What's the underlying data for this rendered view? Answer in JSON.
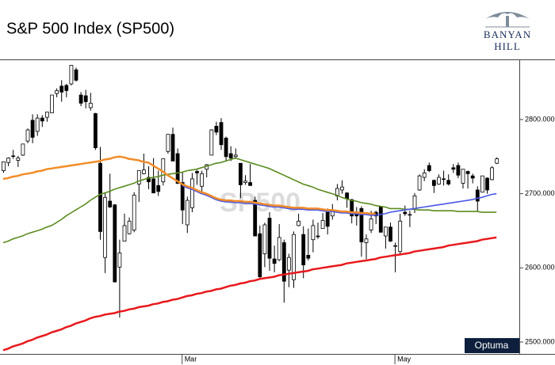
{
  "chart_data": {
    "type": "candlestick",
    "title": "S&P 500 Index  (SP500)",
    "watermark": "SP500",
    "logo": {
      "line1": "BANYAN",
      "line2": "HILL"
    },
    "badge": "Optuma",
    "categories": [
      null,
      null,
      null,
      null,
      null,
      null,
      null,
      null,
      null,
      null,
      null,
      null,
      null,
      null,
      null,
      null,
      null,
      null,
      null,
      null,
      null,
      null,
      null,
      null,
      null,
      null,
      null,
      null,
      null,
      null,
      null,
      null,
      null,
      null,
      null,
      null,
      null,
      "Mar",
      null,
      null,
      null,
      null,
      null,
      null,
      null,
      null,
      null,
      null,
      null,
      null,
      null,
      null,
      null,
      null,
      null,
      null,
      null,
      null,
      null,
      null,
      null,
      null,
      null,
      null,
      null,
      null,
      null,
      null,
      null,
      null,
      null,
      null,
      null,
      null,
      null,
      null,
      null,
      null,
      null,
      null,
      null,
      "May",
      null,
      null,
      null,
      null,
      null,
      null,
      null,
      null,
      null,
      null,
      null,
      null,
      null,
      null,
      null,
      null,
      null,
      null,
      null,
      null,
      null,
      null,
      null
    ],
    "ylim": [
      2484,
      2880
    ],
    "yticks": [
      {
        "value": 2500,
        "label": "2500.000"
      },
      {
        "value": 2600,
        "label": "2600.000"
      },
      {
        "value": 2700,
        "label": "2700.000"
      },
      {
        "value": 2800,
        "label": "2800.000"
      }
    ],
    "candles": {
      "up_color": "#ffffff",
      "down_color": "#000000",
      "open": [
        2731,
        2742,
        2751,
        2745,
        2752,
        2771,
        2799,
        2784,
        2802,
        2803,
        2809,
        2835,
        2845,
        2846,
        2848,
        2867,
        2833,
        2832,
        2816,
        2808,
        2741,
        2614,
        2690,
        2685,
        2601,
        2636,
        2646,
        2651,
        2713,
        2727,
        2722,
        2720,
        2711,
        2716,
        2757,
        2780,
        2754,
        2715,
        2658,
        2681,
        2730,
        2710,
        2733,
        2752,
        2791,
        2796,
        2775,
        2754,
        2750,
        2741,
        2715,
        2715,
        2691,
        2646,
        2619,
        2667,
        2612,
        2611,
        2634,
        2597,
        2584,
        2657,
        2645,
        2617,
        2638,
        2643,
        2653,
        2675,
        2670,
        2697,
        2705,
        2701,
        2692,
        2675,
        2680,
        2634,
        2651,
        2675,
        2682,
        2643,
        2655,
        2629,
        2622,
        2675,
        2671,
        2679,
        2705,
        2722,
        2738,
        2718,
        2713,
        2720,
        2718,
        2735,
        2738,
        2714,
        2730,
        2724,
        2705,
        2702,
        2721,
        2719,
        2741
      ],
      "high": [
        2743,
        2749,
        2759,
        2751,
        2767,
        2788,
        2807,
        2807,
        2806,
        2810,
        2833,
        2842,
        2853,
        2848,
        2873,
        2870,
        2837,
        2840,
        2836,
        2809,
        2763,
        2701,
        2727,
        2686,
        2638,
        2673,
        2668,
        2702,
        2731,
        2754,
        2737,
        2748,
        2731,
        2747,
        2780,
        2789,
        2761,
        2730,
        2696,
        2728,
        2732,
        2731,
        2740,
        2787,
        2797,
        2802,
        2777,
        2764,
        2761,
        2741,
        2725,
        2740,
        2696,
        2657,
        2661,
        2675,
        2630,
        2659,
        2638,
        2619,
        2649,
        2673,
        2656,
        2653,
        2665,
        2661,
        2674,
        2680,
        2686,
        2713,
        2718,
        2702,
        2693,
        2682,
        2683,
        2645,
        2677,
        2677,
        2683,
        2655,
        2661,
        2634,
        2673,
        2684,
        2677,
        2701,
        2726,
        2733,
        2742,
        2719,
        2726,
        2731,
        2726,
        2740,
        2742,
        2733,
        2731,
        2727,
        2710,
        2724,
        2722,
        2737,
        2749
      ],
      "low": [
        2728,
        2737,
        2747,
        2736,
        2751,
        2768,
        2768,
        2778,
        2790,
        2797,
        2809,
        2830,
        2824,
        2830,
        2846,
        2851,
        2818,
        2815,
        2812,
        2759,
        2638,
        2593,
        2681,
        2581,
        2533,
        2636,
        2645,
        2648,
        2689,
        2726,
        2706,
        2701,
        2697,
        2711,
        2754,
        2744,
        2713,
        2659,
        2647,
        2675,
        2712,
        2701,
        2722,
        2752,
        2779,
        2759,
        2744,
        2744,
        2747,
        2694,
        2712,
        2711,
        2643,
        2586,
        2601,
        2596,
        2594,
        2609,
        2553,
        2574,
        2573,
        2656,
        2586,
        2610,
        2621,
        2639,
        2653,
        2645,
        2665,
        2691,
        2700,
        2681,
        2660,
        2657,
        2615,
        2612,
        2647,
        2659,
        2648,
        2626,
        2635,
        2594,
        2617,
        2670,
        2655,
        2674,
        2704,
        2717,
        2729,
        2701,
        2712,
        2711,
        2711,
        2728,
        2721,
        2707,
        2707,
        2714,
        2676,
        2702,
        2700,
        2718,
        2740
      ],
      "close": [
        2743,
        2748,
        2751,
        2748,
        2767,
        2786,
        2776,
        2802,
        2798,
        2810,
        2833,
        2839,
        2837,
        2839,
        2873,
        2853,
        2822,
        2824,
        2822,
        2762,
        2649,
        2695,
        2682,
        2581,
        2620,
        2657,
        2663,
        2698,
        2731,
        2732,
        2716,
        2701,
        2703,
        2747,
        2780,
        2744,
        2714,
        2678,
        2691,
        2720,
        2728,
        2727,
        2739,
        2786,
        2783,
        2766,
        2750,
        2748,
        2752,
        2712,
        2717,
        2711,
        2643,
        2588,
        2658,
        2613,
        2606,
        2641,
        2582,
        2614,
        2645,
        2663,
        2604,
        2613,
        2657,
        2642,
        2664,
        2656,
        2678,
        2707,
        2709,
        2693,
        2670,
        2670,
        2635,
        2639,
        2666,
        2670,
        2648,
        2655,
        2636,
        2630,
        2663,
        2673,
        2672,
        2697,
        2724,
        2728,
        2731,
        2711,
        2722,
        2720,
        2713,
        2733,
        2725,
        2733,
        2727,
        2721,
        2690,
        2724,
        2705,
        2735,
        2747
      ]
    },
    "lines": [
      {
        "color": "#e8191c",
        "values": [
          2489,
          2491,
          2494,
          2496,
          2498,
          2501,
          2503,
          2506,
          2508,
          2510,
          2513,
          2515,
          2517,
          2520,
          2522,
          2525,
          2527,
          2529,
          2532,
          2534,
          2535,
          2537,
          2538,
          2539,
          2541,
          2542,
          2544,
          2545,
          2547,
          2548,
          2549,
          2551,
          2552,
          2554,
          2555,
          2557,
          2558,
          2560,
          2562,
          2563,
          2565,
          2566,
          2568,
          2569,
          2571,
          2572,
          2574,
          2576,
          2577,
          2579,
          2580,
          2582,
          2583,
          2585,
          2586,
          2587,
          2588,
          2590,
          2591,
          2592,
          2593,
          2594,
          2595,
          2596,
          2598,
          2599,
          2600,
          2601,
          2602,
          2603,
          2604,
          2606,
          2607,
          2608,
          2609,
          2610,
          2611,
          2612,
          2614,
          2615,
          2616,
          2617,
          2618,
          2619,
          2620,
          2622,
          2623,
          2624,
          2625,
          2626,
          2627,
          2628,
          2630,
          2631,
          2632,
          2633,
          2634,
          2635,
          2636,
          2638,
          2639,
          2640,
          2641
        ]
      },
      {
        "color": "#5b8c1f",
        "values": [
          2634,
          2636,
          2639,
          2641,
          2643,
          2646,
          2648,
          2650,
          2652,
          2655,
          2657,
          2661,
          2665,
          2670,
          2674,
          2678,
          2682,
          2686,
          2691,
          2695,
          2699,
          2701,
          2703,
          2706,
          2708,
          2710,
          2712,
          2714,
          2717,
          2719,
          2721,
          2722,
          2723,
          2725,
          2726,
          2727,
          2728,
          2729,
          2731,
          2732,
          2733,
          2735,
          2737,
          2739,
          2741,
          2742,
          2744,
          2746,
          2748,
          2746,
          2744,
          2742,
          2740,
          2738,
          2736,
          2734,
          2731,
          2728,
          2725,
          2722,
          2719,
          2716,
          2713,
          2711,
          2709,
          2706,
          2704,
          2702,
          2700,
          2698,
          2695,
          2693,
          2691,
          2690,
          2688,
          2687,
          2686,
          2684,
          2683,
          2682,
          2680,
          2680,
          2680,
          2679,
          2679,
          2679,
          2678,
          2678,
          2678,
          2677,
          2677,
          2677,
          2677,
          2677,
          2676,
          2676,
          2676,
          2676,
          2676,
          2675,
          2675,
          2675,
          2675
        ]
      },
      {
        "color": "#4a57e6",
        "values": [
          null,
          null,
          null,
          null,
          null,
          null,
          null,
          null,
          null,
          null,
          null,
          null,
          null,
          null,
          null,
          null,
          null,
          null,
          null,
          null,
          null,
          null,
          null,
          null,
          null,
          null,
          null,
          null,
          null,
          null,
          null,
          null,
          null,
          null,
          null,
          null,
          null,
          2711,
          2708,
          2706,
          2703,
          2700,
          2698,
          2695,
          2692,
          2690,
          2689,
          2689,
          2688,
          2688,
          2687,
          2687,
          2686,
          2685,
          2684,
          2683,
          2682,
          2682,
          2681,
          2680,
          2679,
          2679,
          2679,
          2678,
          2678,
          2678,
          2677,
          2676,
          2676,
          2675,
          2674,
          2674,
          2673,
          2673,
          2672,
          2672,
          2671,
          2671,
          2672,
          2673,
          2675,
          2676,
          2677,
          2678,
          2679,
          2680,
          2681,
          2682,
          2683,
          2684,
          2685,
          2686,
          2687,
          2688,
          2689,
          2690,
          2691,
          2692,
          2694,
          2695,
          2697,
          2699,
          2700
        ]
      },
      {
        "color": "#f28c28",
        "values": [
          2720,
          2721,
          2723,
          2724,
          2726,
          2727,
          2728,
          2730,
          2731,
          2733,
          2734,
          2735,
          2736,
          2737,
          2738,
          2739,
          2740,
          2741,
          2742,
          2743,
          2744,
          2746,
          2747,
          2749,
          2750,
          2749,
          2747,
          2746,
          2745,
          2743,
          2742,
          2738,
          2734,
          2730,
          2725,
          2721,
          2717,
          2713,
          2710,
          2708,
          2705,
          2702,
          2700,
          2697,
          2694,
          2692,
          2691,
          2691,
          2690,
          2690,
          2689,
          2689,
          2688,
          2687,
          2686,
          2685,
          2684,
          2684,
          2683,
          2682,
          2681,
          2681,
          2681,
          2680,
          2680,
          2680,
          2679,
          2678,
          2678,
          2677,
          2676,
          2676,
          2675,
          2675,
          2674,
          2674,
          2673,
          2673,
          null,
          null,
          null,
          null,
          null,
          null,
          null,
          null,
          null,
          null,
          null,
          null,
          null,
          null,
          null,
          null,
          null,
          null,
          null,
          null,
          null,
          null,
          null,
          null,
          null
        ]
      }
    ]
  }
}
